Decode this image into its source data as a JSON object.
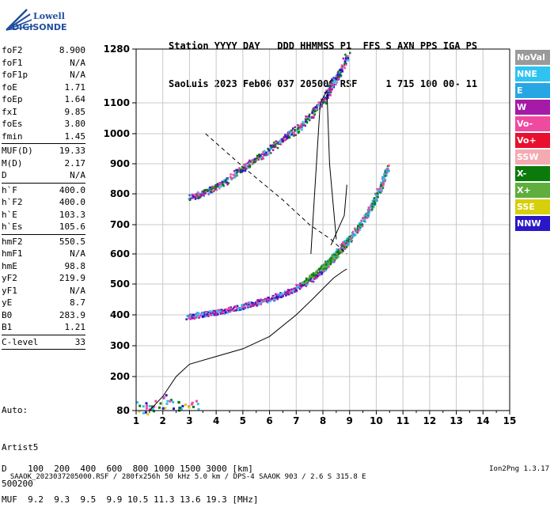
{
  "logo": {
    "line1": "Lowell",
    "line2": "DIGISONDE"
  },
  "header": {
    "labels": "Station YYYY DAY   DDD HHMMSS P1  FFS S AXN PPS IGA PS",
    "values": "SaoLuis 2023 Feb06 037 205000 RSF     1 715 100 00- 11"
  },
  "params": [
    {
      "name": "foF2",
      "value": "8.900"
    },
    {
      "name": "foF1",
      "value": "N/A"
    },
    {
      "name": "foF1p",
      "value": "N/A"
    },
    {
      "name": "foE",
      "value": "1.71"
    },
    {
      "name": "foEp",
      "value": "1.64"
    },
    {
      "name": "fxI",
      "value": "9.85"
    },
    {
      "name": "foEs",
      "value": "3.80"
    },
    {
      "name": "fmin",
      "value": "1.45"
    },
    {
      "sep": true
    },
    {
      "name": "MUF(D)",
      "value": "19.33"
    },
    {
      "name": "M(D)",
      "value": "2.17"
    },
    {
      "name": "D",
      "value": "N/A"
    },
    {
      "sep": true
    },
    {
      "name": "h`F",
      "value": "400.0"
    },
    {
      "name": "h`F2",
      "value": "400.0"
    },
    {
      "name": "h`E",
      "value": "103.3"
    },
    {
      "name": "h`Es",
      "value": "105.6"
    },
    {
      "sep": true
    },
    {
      "name": "hmF2",
      "value": "550.5"
    },
    {
      "name": "hmF1",
      "value": "N/A"
    },
    {
      "name": "hmE",
      "value": "98.8"
    },
    {
      "name": "yF2",
      "value": "219.9"
    },
    {
      "name": "yF1",
      "value": "N/A"
    },
    {
      "name": "yE",
      "value": "8.7"
    },
    {
      "name": "B0",
      "value": "283.9"
    },
    {
      "name": "B1",
      "value": "1.21"
    },
    {
      "sep": true
    },
    {
      "name": "C-level",
      "value": "33"
    },
    {
      "sep": true
    }
  ],
  "auto": {
    "line1": "Auto:",
    "line2": "Artist5",
    "line3": "500200"
  },
  "legend": [
    {
      "label": "NoVal",
      "color": "#9a9a9a"
    },
    {
      "label": "NNE",
      "color": "#2fc3f0"
    },
    {
      "label": "E",
      "color": "#27a6e4"
    },
    {
      "label": "W",
      "color": "#a61aa8"
    },
    {
      "label": "Vo-",
      "color": "#f04aa0"
    },
    {
      "label": "Vo+",
      "color": "#e8102e"
    },
    {
      "label": "SSW",
      "color": "#f3aab1"
    },
    {
      "label": "X-",
      "color": "#0b7a0b"
    },
    {
      "label": "X+",
      "color": "#5fae3e"
    },
    {
      "label": "SSE",
      "color": "#d6cf0a"
    },
    {
      "label": "NNW",
      "color": "#2a18c8"
    }
  ],
  "dtable": {
    "row1": "D    100  200  400  600  800 1000 1500 3000 [km]",
    "row2": "MUF  9.2  9.3  9.5  9.9 10.5 11.3 13.6 19.3 [MHz]"
  },
  "footer": {
    "left": "SAAOK_2023037205000.RSF / 280fx256h 50 kHz 5.0 km / DPS-4 SAAOK 903 / 2.6 S 315.8 E",
    "right": "Ion2Png 1.3.17"
  },
  "chart_data": {
    "type": "scatter",
    "xlabel": "",
    "ylabel": "",
    "xlim": [
      1,
      15
    ],
    "ylim": [
      80,
      1280
    ],
    "x_ticks": [
      1,
      2,
      3,
      4,
      5,
      6,
      7,
      8,
      9,
      10,
      11,
      12,
      13,
      14,
      15
    ],
    "y_ticks": [
      80,
      200,
      300,
      400,
      500,
      600,
      700,
      800,
      900,
      1000,
      1100,
      1280
    ],
    "grid": true,
    "trace_o_lower": [
      [
        2.9,
        395
      ],
      [
        3.2,
        400
      ],
      [
        3.6,
        405
      ],
      [
        4.0,
        410
      ],
      [
        4.5,
        420
      ],
      [
        5.0,
        430
      ],
      [
        5.5,
        440
      ],
      [
        6.0,
        455
      ],
      [
        6.5,
        470
      ],
      [
        7.0,
        490
      ],
      [
        7.5,
        515
      ],
      [
        7.9,
        545
      ],
      [
        8.2,
        570
      ],
      [
        8.5,
        605
      ],
      [
        8.8,
        640
      ]
    ],
    "trace_x_lower": [
      [
        8.0,
        560
      ],
      [
        8.3,
        585
      ],
      [
        8.6,
        610
      ],
      [
        8.9,
        645
      ],
      [
        9.2,
        680
      ],
      [
        9.5,
        720
      ],
      [
        9.8,
        765
      ],
      [
        10.0,
        800
      ],
      [
        10.2,
        840
      ],
      [
        10.4,
        890
      ]
    ],
    "trace_upper": [
      [
        3.0,
        790
      ],
      [
        3.5,
        805
      ],
      [
        4.0,
        825
      ],
      [
        4.5,
        855
      ],
      [
        5.0,
        890
      ],
      [
        5.5,
        920
      ],
      [
        6.0,
        950
      ],
      [
        6.5,
        985
      ],
      [
        7.0,
        1015
      ],
      [
        7.5,
        1060
      ],
      [
        8.0,
        1110
      ],
      [
        8.3,
        1160
      ],
      [
        8.6,
        1200
      ],
      [
        8.9,
        1260
      ]
    ],
    "profile_curve": [
      [
        1.5,
        80
      ],
      [
        2.0,
        130
      ],
      [
        2.5,
        200
      ],
      [
        3.0,
        240
      ],
      [
        4.0,
        265
      ],
      [
        5.0,
        290
      ],
      [
        6.0,
        330
      ],
      [
        7.0,
        400
      ],
      [
        7.6,
        450
      ],
      [
        8.0,
        485
      ],
      [
        8.4,
        520
      ],
      [
        8.8,
        545
      ],
      [
        8.9,
        550
      ]
    ],
    "dashed_line": [
      [
        3.6,
        1000
      ],
      [
        5.0,
        890
      ],
      [
        6.5,
        780
      ],
      [
        7.5,
        700
      ],
      [
        8.3,
        650
      ],
      [
        8.9,
        600
      ]
    ],
    "mx_curves": [
      [
        [
          7.55,
          600
        ],
        [
          7.9,
          1100
        ],
        [
          8.15,
          1140
        ],
        [
          8.25,
          900
        ],
        [
          8.5,
          650
        ]
      ],
      [
        [
          8.3,
          630
        ],
        [
          8.8,
          730
        ],
        [
          8.9,
          830
        ]
      ]
    ],
    "low_cluster": [
      [
        1.2,
        95
      ],
      [
        1.6,
        100
      ],
      [
        2.0,
        110
      ],
      [
        2.4,
        95
      ],
      [
        2.8,
        105
      ],
      [
        3.2,
        100
      ],
      [
        1.4,
        85
      ],
      [
        2.2,
        120
      ]
    ]
  }
}
